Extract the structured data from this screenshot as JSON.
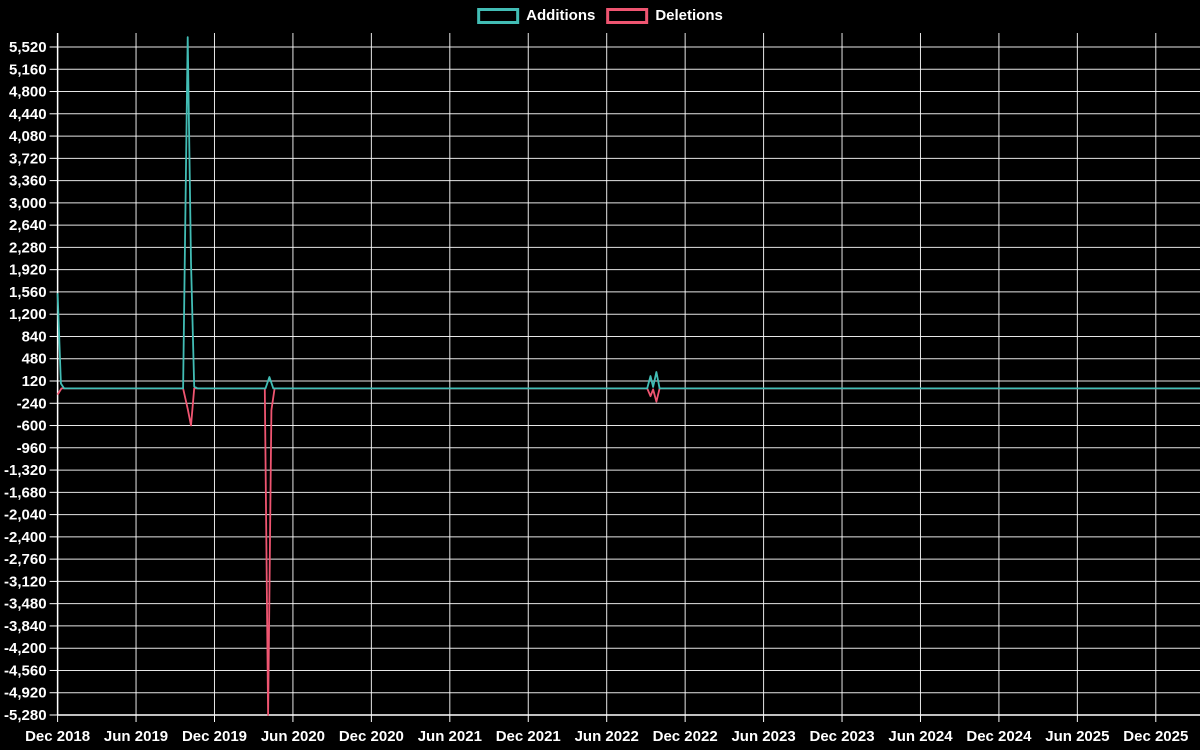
{
  "figure": {
    "background": "#000000",
    "grid_color": "#ffffff",
    "text_color": "#ffffff",
    "additions_color": "#42bdb5",
    "deletions_color": "#ef5571"
  },
  "legend": {
    "position": "top-center",
    "items": [
      "Additions",
      "Deletions"
    ]
  },
  "chart_data": {
    "type": "line",
    "title": "",
    "xlabel": "",
    "ylabel": "",
    "x_unit": "months since Dec 2018",
    "x_axis": {
      "tick_labels": [
        "Dec 2018",
        "Jun 2019",
        "Dec 2019",
        "Jun 2020",
        "Dec 2020",
        "Jun 2021",
        "Dec 2021",
        "Jun 2022",
        "Dec 2022",
        "Jun 2023",
        "Dec 2023",
        "Jun 2024",
        "Dec 2024",
        "Jun 2025",
        "Dec 2025"
      ],
      "months_per_tick": 6,
      "plot_end_month": 87.4
    },
    "y_axis": {
      "label_max": 5520,
      "label_min": -5280,
      "step": 360,
      "plot_top_value": 5746,
      "plot_bottom_value": -5280
    },
    "grid": true,
    "series": [
      {
        "name": "Additions",
        "color": "#42bdb5",
        "points": [
          [
            0,
            1540
          ],
          [
            0.25,
            80
          ],
          [
            0.5,
            0
          ],
          [
            9.6,
            0
          ],
          [
            9.95,
            5680
          ],
          [
            10.2,
            2040
          ],
          [
            10.45,
            30
          ],
          [
            10.7,
            0
          ],
          [
            15.9,
            0
          ],
          [
            16.2,
            185
          ],
          [
            16.5,
            0
          ],
          [
            45.1,
            0
          ],
          [
            45.35,
            200
          ],
          [
            45.55,
            25
          ],
          [
            45.8,
            265
          ],
          [
            46.05,
            0
          ],
          [
            87.4,
            0
          ]
        ]
      },
      {
        "name": "Deletions",
        "color": "#ef5571",
        "points": [
          [
            0,
            -100
          ],
          [
            0.3,
            0
          ],
          [
            9.6,
            0
          ],
          [
            9.95,
            -330
          ],
          [
            10.2,
            -600
          ],
          [
            10.45,
            0
          ],
          [
            15.85,
            0
          ],
          [
            16.1,
            -5280
          ],
          [
            16.35,
            -350
          ],
          [
            16.6,
            0
          ],
          [
            45.1,
            0
          ],
          [
            45.35,
            -125
          ],
          [
            45.55,
            -15
          ],
          [
            45.8,
            -215
          ],
          [
            46.05,
            0
          ],
          [
            87.4,
            0
          ]
        ]
      }
    ]
  }
}
